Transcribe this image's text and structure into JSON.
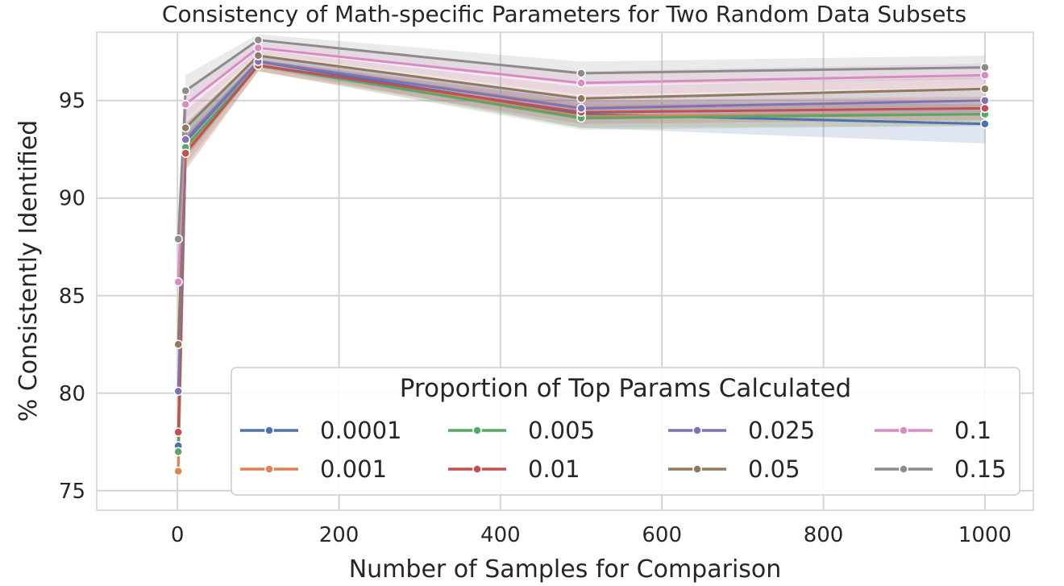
{
  "chart_data": {
    "type": "line",
    "title": "Consistency of Math-specific Parameters for Two Random Data Subsets",
    "xlabel": "Number of Samples for Comparison",
    "ylabel": "% Consistently Identified",
    "xlim": [
      -100,
      1060
    ],
    "ylim": [
      74,
      98.5
    ],
    "xticks": [
      0,
      200,
      400,
      600,
      800,
      1000
    ],
    "yticks": [
      75,
      80,
      85,
      90,
      95
    ],
    "grid": true,
    "legend": {
      "title": "Proportion of Top Params Calculated",
      "position": "lower-right",
      "columns": 4
    },
    "x": [
      1,
      10,
      100,
      500,
      1000
    ],
    "series": [
      {
        "name": "0.0001",
        "color": "#4c72b0",
        "marker": "o",
        "values": [
          77.3,
          92.9,
          97.0,
          94.3,
          93.8
        ],
        "ci_halfwidth": [
          0.4,
          0.9,
          0.3,
          0.7,
          1.0
        ]
      },
      {
        "name": "0.001",
        "color": "#dd8452",
        "marker": "o",
        "values": [
          76.0,
          92.4,
          96.8,
          94.2,
          94.3
        ],
        "ci_halfwidth": [
          0.4,
          0.9,
          0.3,
          0.6,
          0.6
        ]
      },
      {
        "name": "0.005",
        "color": "#55a868",
        "marker": "o",
        "values": [
          77.0,
          92.6,
          96.8,
          94.1,
          94.3
        ],
        "ci_halfwidth": [
          0.4,
          0.9,
          0.3,
          0.6,
          0.6
        ]
      },
      {
        "name": "0.01",
        "color": "#c44e52",
        "marker": "o",
        "values": [
          78.0,
          92.3,
          96.8,
          94.4,
          94.6
        ],
        "ci_halfwidth": [
          0.4,
          0.9,
          0.3,
          0.6,
          0.6
        ]
      },
      {
        "name": "0.025",
        "color": "#8172b3",
        "marker": "o",
        "values": [
          80.1,
          93.0,
          97.0,
          94.6,
          95.0
        ],
        "ci_halfwidth": [
          0.4,
          0.9,
          0.3,
          0.6,
          0.6
        ]
      },
      {
        "name": "0.05",
        "color": "#937860",
        "marker": "o",
        "values": [
          82.5,
          93.6,
          97.3,
          95.1,
          95.6
        ],
        "ci_halfwidth": [
          0.4,
          0.9,
          0.3,
          0.6,
          0.6
        ]
      },
      {
        "name": "0.1",
        "color": "#da8bc3",
        "marker": "o",
        "values": [
          85.7,
          94.8,
          97.7,
          95.9,
          96.3
        ],
        "ci_halfwidth": [
          0.4,
          0.8,
          0.3,
          0.6,
          0.6
        ]
      },
      {
        "name": "0.15",
        "color": "#8c8c8c",
        "marker": "o",
        "values": [
          87.9,
          95.5,
          98.1,
          96.4,
          96.7
        ],
        "ci_halfwidth": [
          0.4,
          0.8,
          0.3,
          0.6,
          0.6
        ]
      }
    ]
  }
}
